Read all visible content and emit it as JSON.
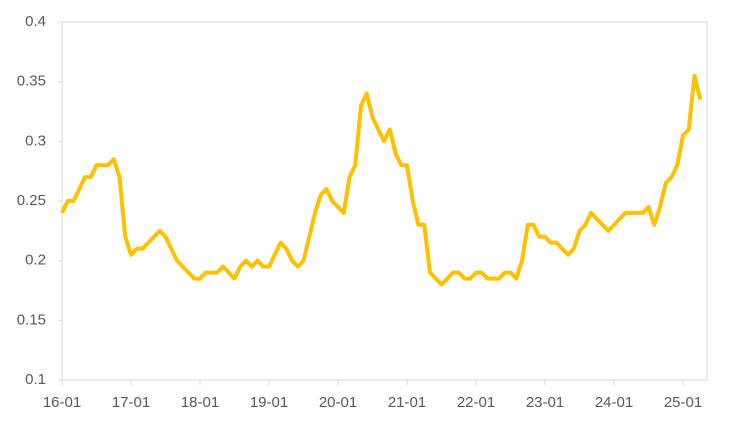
{
  "chart_data": {
    "type": "line",
    "x": [
      "16-01",
      "16-02",
      "16-03",
      "16-04",
      "16-05",
      "16-06",
      "16-07",
      "16-08",
      "16-09",
      "16-10",
      "16-11",
      "16-12",
      "17-01",
      "17-02",
      "17-03",
      "17-04",
      "17-05",
      "17-06",
      "17-07",
      "17-08",
      "17-09",
      "17-10",
      "17-11",
      "17-12",
      "18-01",
      "18-02",
      "18-03",
      "18-04",
      "18-05",
      "18-06",
      "18-07",
      "18-08",
      "18-09",
      "18-10",
      "18-11",
      "18-12",
      "19-01",
      "19-02",
      "19-03",
      "19-04",
      "19-05",
      "19-06",
      "19-07",
      "19-08",
      "19-09",
      "19-10",
      "19-11",
      "19-12",
      "20-01",
      "20-02",
      "20-03",
      "20-04",
      "20-05",
      "20-06",
      "20-07",
      "20-08",
      "20-09",
      "20-10",
      "20-11",
      "20-12",
      "21-01",
      "21-02",
      "21-03",
      "21-04",
      "21-05",
      "21-06",
      "21-07",
      "21-08",
      "21-09",
      "21-10",
      "21-11",
      "21-12",
      "22-01",
      "22-02",
      "22-03",
      "22-04",
      "22-05",
      "22-06",
      "22-07",
      "22-08",
      "22-09",
      "22-10",
      "22-11",
      "22-12",
      "23-01",
      "23-02",
      "23-03",
      "23-04",
      "23-05",
      "23-06",
      "23-07",
      "23-08",
      "23-09",
      "23-10",
      "23-11",
      "23-12",
      "24-01",
      "24-02",
      "24-03",
      "24-04",
      "24-05",
      "24-06",
      "24-07",
      "24-08",
      "24-09",
      "24-10",
      "24-11",
      "24-12",
      "25-01",
      "25-02",
      "25-03",
      "25-04"
    ],
    "values": [
      0.24,
      0.25,
      0.25,
      0.26,
      0.27,
      0.27,
      0.28,
      0.28,
      0.28,
      0.285,
      0.27,
      0.22,
      0.205,
      0.21,
      0.21,
      0.215,
      0.22,
      0.225,
      0.22,
      0.21,
      0.2,
      0.195,
      0.19,
      0.185,
      0.185,
      0.19,
      0.19,
      0.19,
      0.195,
      0.19,
      0.185,
      0.195,
      0.2,
      0.195,
      0.2,
      0.195,
      0.195,
      0.205,
      0.215,
      0.21,
      0.2,
      0.195,
      0.2,
      0.22,
      0.24,
      0.255,
      0.26,
      0.25,
      0.245,
      0.24,
      0.27,
      0.28,
      0.33,
      0.34,
      0.32,
      0.31,
      0.3,
      0.31,
      0.29,
      0.28,
      0.28,
      0.25,
      0.23,
      0.23,
      0.19,
      0.185,
      0.18,
      0.185,
      0.19,
      0.19,
      0.185,
      0.185,
      0.19,
      0.19,
      0.185,
      0.185,
      0.185,
      0.19,
      0.19,
      0.185,
      0.2,
      0.23,
      0.23,
      0.22,
      0.22,
      0.215,
      0.215,
      0.21,
      0.205,
      0.21,
      0.225,
      0.23,
      0.24,
      0.235,
      0.23,
      0.225,
      0.23,
      0.235,
      0.24,
      0.24,
      0.24,
      0.24,
      0.245,
      0.23,
      0.245,
      0.265,
      0.27,
      0.28,
      0.305,
      0.31,
      0.355,
      0.335
    ],
    "color": "#ffc000",
    "xticks": [
      "16-01",
      "17-01",
      "18-01",
      "19-01",
      "20-01",
      "21-01",
      "22-01",
      "23-01",
      "24-01",
      "25-01"
    ],
    "ylim": [
      0.1,
      0.4
    ],
    "yticks": [
      0.1,
      0.15,
      0.2,
      0.25,
      0.3,
      0.35,
      0.4
    ],
    "grid": false
  }
}
